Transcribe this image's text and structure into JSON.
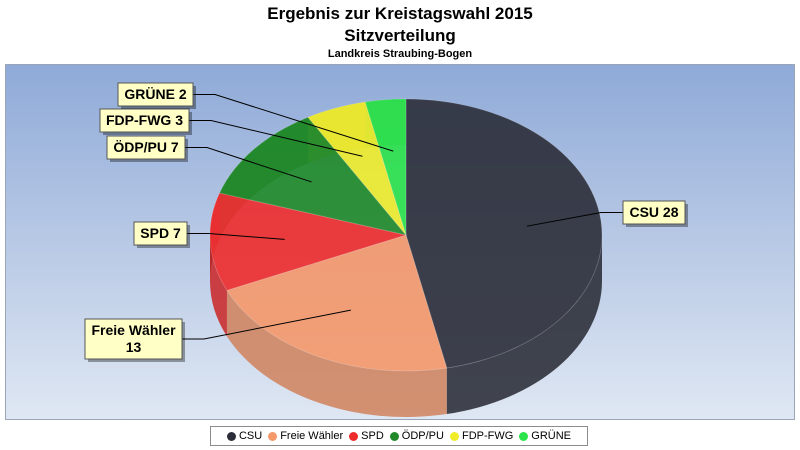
{
  "chart_data": {
    "type": "pie",
    "title": "Ergebnis zur Kreistagswahl 2015",
    "subtitle": "Sitzverteilung",
    "subsubtitle": "Landkreis Straubing-Bogen",
    "slices": [
      {
        "name": "CSU",
        "value": 28,
        "label_lines": [
          "CSU 28"
        ],
        "color": "#2b2e38"
      },
      {
        "name": "Freie Wähler",
        "value": 13,
        "label_lines": [
          "Freie Wähler",
          "13"
        ],
        "color": "#f5986a"
      },
      {
        "name": "SPD",
        "value": 7,
        "label_lines": [
          "SPD 7"
        ],
        "color": "#ee2b2b"
      },
      {
        "name": "ÖDP/PU",
        "value": 7,
        "label_lines": [
          "ÖDP/PU 7"
        ],
        "color": "#1f8a27"
      },
      {
        "name": "FDP-FWG",
        "value": 3,
        "label_lines": [
          "FDP-FWG 3"
        ],
        "color": "#f0ec2a"
      },
      {
        "name": "GRÜNE",
        "value": 2,
        "label_lines": [
          "GRÜNE 2"
        ],
        "color": "#2be34a"
      }
    ],
    "legend_position": "bottom"
  }
}
